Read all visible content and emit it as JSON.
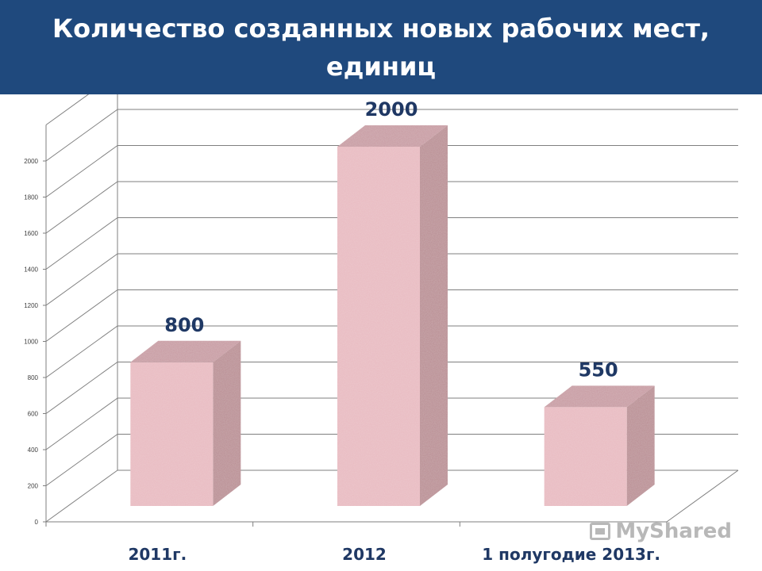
{
  "header": {
    "title": "Количество созданных новых рабочих мест, единиц"
  },
  "chart_data": {
    "type": "bar",
    "title": "Количество созданных новых рабочих мест, единиц",
    "categories": [
      "2011г.",
      "2012",
      "1 полугодие 2013г."
    ],
    "values": [
      800,
      2000,
      550
    ],
    "data_labels": [
      "800",
      "2000",
      "550"
    ],
    "y_ticks": [
      0,
      200,
      400,
      600,
      800,
      1000,
      1200,
      1400,
      1600,
      1800,
      2000
    ],
    "ylim": [
      0,
      2000
    ],
    "grid": true,
    "style": "3d-column",
    "colors": {
      "bar_front": "#e8b9c0",
      "bar_side": "#b98c92",
      "bar_top": "#c79aa1",
      "label": "#1f3864",
      "grid": "#7f7f7f"
    }
  },
  "watermark": {
    "text": "MyShared"
  }
}
